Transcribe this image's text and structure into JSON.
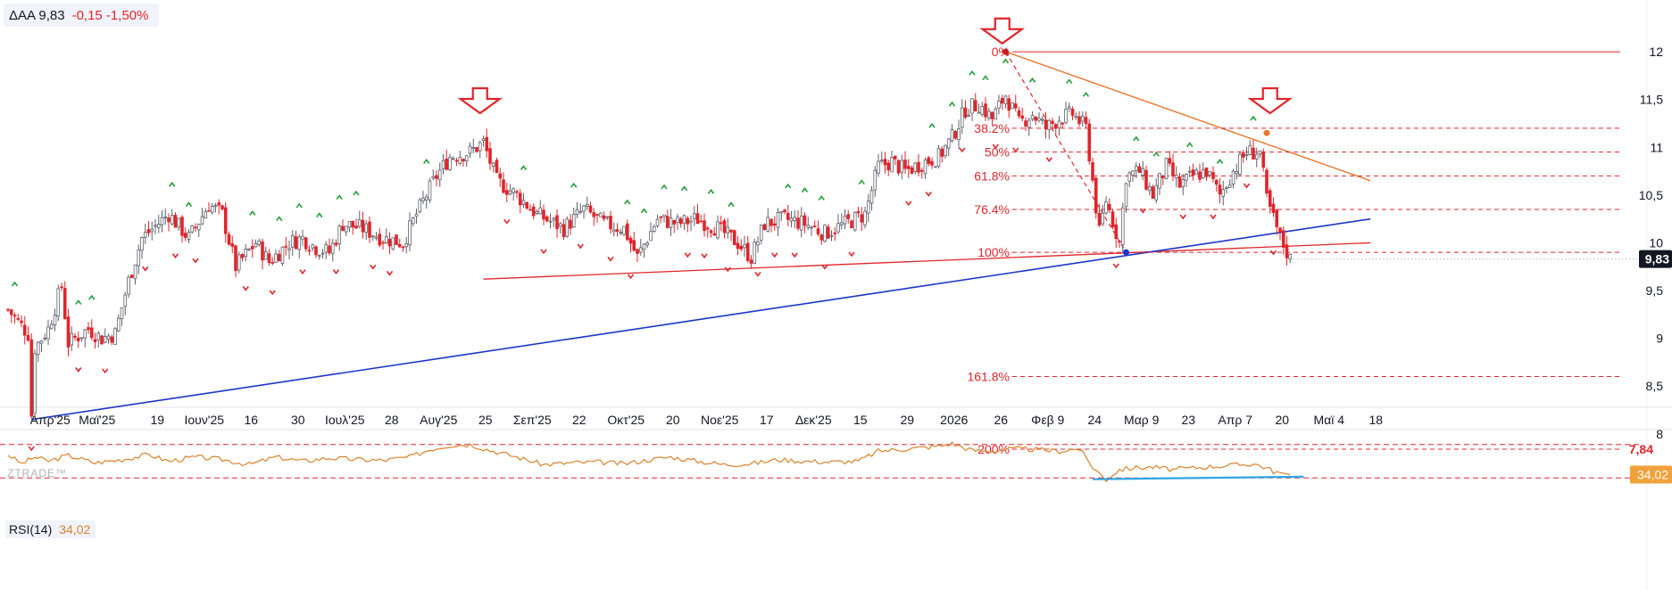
{
  "header": {
    "symbol": "ΔΑΑ 9,83",
    "change": "-0,15 -1,50%"
  },
  "rsi": {
    "name": "RSI(14)",
    "value": "34,02"
  },
  "brand": "ZTRADE™",
  "colors": {
    "up": "#ffffff",
    "down": "#e0252b",
    "fib": "#e0252b",
    "trend_blue": "#1b35c8",
    "trend_orange": "#e8772e",
    "rsi_line": "#d9822b",
    "rsi_trend": "#2fa6e6",
    "axis_text": "#131722"
  },
  "chart_data": [
    {
      "type": "candlestick",
      "title": "ΔΑΑ",
      "last_price": 9.83,
      "last_price_label": "9,83",
      "fib_low_label": "7,84",
      "ylim": [
        7.7,
        12.15
      ],
      "y_ticks": [
        {
          "value": 12,
          "label": "12"
        },
        {
          "value": 11.5,
          "label": "11,5"
        },
        {
          "value": 11,
          "label": "11"
        },
        {
          "value": 10.5,
          "label": "10,5"
        },
        {
          "value": 10,
          "label": "10"
        },
        {
          "value": 9.5,
          "label": "9,5"
        },
        {
          "value": 9,
          "label": "9"
        },
        {
          "value": 8.5,
          "label": "8,5"
        },
        {
          "value": 8,
          "label": "8"
        }
      ],
      "x_ticks": [
        {
          "day": 11,
          "label": "Απρ'25"
        },
        {
          "day": 25,
          "label": "Μαϊ'25"
        },
        {
          "day": 43,
          "label": "19"
        },
        {
          "day": 57,
          "label": "Ιουν'25"
        },
        {
          "day": 71,
          "label": "16"
        },
        {
          "day": 85,
          "label": "30"
        },
        {
          "day": 99,
          "label": "Ιουλ'25"
        },
        {
          "day": 113,
          "label": "28"
        },
        {
          "day": 127,
          "label": "Αυγ'25"
        },
        {
          "day": 141,
          "label": "25"
        },
        {
          "day": 155,
          "label": "Σεπ'25"
        },
        {
          "day": 169,
          "label": "22"
        },
        {
          "day": 183,
          "label": "Οκτ'25"
        },
        {
          "day": 197,
          "label": "20"
        },
        {
          "day": 211,
          "label": "Νοε'25"
        },
        {
          "day": 225,
          "label": "17"
        },
        {
          "day": 239,
          "label": "Δεκ'25"
        },
        {
          "day": 253,
          "label": "15"
        },
        {
          "day": 267,
          "label": "29"
        },
        {
          "day": 281,
          "label": "2026"
        },
        {
          "day": 295,
          "label": "26"
        },
        {
          "day": 309,
          "label": "Φεβ 9"
        },
        {
          "day": 323,
          "label": "24"
        },
        {
          "day": 337,
          "label": "Μαρ 9"
        },
        {
          "day": 351,
          "label": "23"
        },
        {
          "day": 365,
          "label": "Απρ 7"
        },
        {
          "day": 379,
          "label": "20"
        },
        {
          "day": 393,
          "label": "Μαϊ 4"
        },
        {
          "day": 407,
          "label": "18"
        }
      ],
      "price_path": [
        [
          0,
          9.3
        ],
        [
          6,
          9.05
        ],
        [
          7,
          8.2
        ],
        [
          8,
          8.9
        ],
        [
          12,
          9.1
        ],
        [
          16,
          9.55
        ],
        [
          18,
          8.95
        ],
        [
          24,
          9.1
        ],
        [
          28,
          9.0
        ],
        [
          32,
          9.05
        ],
        [
          36,
          9.6
        ],
        [
          40,
          10.05
        ],
        [
          48,
          10.3
        ],
        [
          54,
          10.05
        ],
        [
          60,
          10.4
        ],
        [
          64,
          10.3
        ],
        [
          68,
          9.75
        ],
        [
          74,
          10.0
        ],
        [
          78,
          9.8
        ],
        [
          84,
          10.0
        ],
        [
          88,
          10.05
        ],
        [
          92,
          9.95
        ],
        [
          96,
          9.9
        ],
        [
          100,
          10.2
        ],
        [
          106,
          10.15
        ],
        [
          112,
          10.05
        ],
        [
          118,
          10.0
        ],
        [
          122,
          10.3
        ],
        [
          128,
          10.7
        ],
        [
          132,
          10.9
        ],
        [
          138,
          10.95
        ],
        [
          142,
          11.05
        ],
        [
          146,
          10.65
        ],
        [
          152,
          10.5
        ],
        [
          158,
          10.3
        ],
        [
          166,
          10.15
        ],
        [
          172,
          10.35
        ],
        [
          178,
          10.2
        ],
        [
          184,
          10.15
        ],
        [
          188,
          9.85
        ],
        [
          194,
          10.25
        ],
        [
          200,
          10.2
        ],
        [
          206,
          10.25
        ],
        [
          212,
          10.15
        ],
        [
          218,
          10.0
        ],
        [
          222,
          9.85
        ],
        [
          226,
          10.2
        ],
        [
          232,
          10.25
        ],
        [
          238,
          10.2
        ],
        [
          244,
          10.1
        ],
        [
          250,
          10.2
        ],
        [
          256,
          10.3
        ],
        [
          260,
          10.8
        ],
        [
          264,
          10.85
        ],
        [
          268,
          10.75
        ],
        [
          274,
          10.85
        ],
        [
          278,
          10.9
        ],
        [
          282,
          11.1
        ],
        [
          286,
          11.4
        ],
        [
          290,
          11.45
        ],
        [
          294,
          11.3
        ],
        [
          298,
          11.55
        ],
        [
          302,
          11.25
        ],
        [
          306,
          11.35
        ],
        [
          310,
          11.2
        ],
        [
          314,
          11.3
        ],
        [
          318,
          11.35
        ],
        [
          322,
          11.2
        ],
        [
          326,
          10.1
        ],
        [
          328,
          10.45
        ],
        [
          332,
          10.0
        ],
        [
          334,
          10.7
        ],
        [
          338,
          10.75
        ],
        [
          342,
          10.5
        ],
        [
          346,
          10.8
        ],
        [
          350,
          10.6
        ],
        [
          354,
          10.7
        ],
        [
          358,
          10.75
        ],
        [
          362,
          10.5
        ],
        [
          366,
          10.75
        ],
        [
          370,
          10.95
        ],
        [
          374,
          10.95
        ],
        [
          376,
          10.45
        ],
        [
          380,
          10.05
        ],
        [
          383,
          9.83
        ]
      ],
      "swing_highs": [
        2,
        21,
        25,
        49,
        54,
        73,
        81,
        87,
        93,
        99,
        104,
        125,
        142,
        154,
        169,
        185,
        190,
        196,
        202,
        210,
        216,
        233,
        238,
        243,
        255,
        276,
        282,
        288,
        292,
        298,
        306,
        317,
        322,
        337,
        343,
        353,
        362,
        372
      ],
      "swing_lows": [
        7,
        21,
        29,
        41,
        50,
        56,
        71,
        79,
        88,
        98,
        109,
        114,
        149,
        160,
        171,
        180,
        186,
        203,
        208,
        215,
        224,
        229,
        235,
        244,
        252,
        269,
        275,
        285,
        295,
        301,
        311,
        331,
        339,
        351,
        360,
        370,
        378
      ],
      "annotations": {
        "arrows": [
          {
            "day": 141,
            "price": 11.45
          },
          {
            "day": 297,
            "price": 12.18
          },
          {
            "day": 377,
            "price": 11.45
          }
        ],
        "support_line": {
          "from": [
            142,
            9.62
          ],
          "to": [
            407,
            10.0
          ]
        },
        "blue_trend": {
          "from": [
            7,
            8.15
          ],
          "to": [
            407,
            10.25
          ]
        },
        "orange_trend": {
          "from": [
            298,
            12.0
          ],
          "to": [
            407,
            10.65
          ]
        },
        "fib_diagonal": {
          "from": [
            298,
            12.0
          ],
          "to": [
            334,
            9.9
          ]
        },
        "fib_levels": [
          {
            "price": 12.0,
            "label": "0%"
          },
          {
            "price": 11.2,
            "label": "38.2%"
          },
          {
            "price": 10.95,
            "label": "50%"
          },
          {
            "price": 10.7,
            "label": "61.8%"
          },
          {
            "price": 10.35,
            "label": "76.4%"
          },
          {
            "price": 9.9,
            "label": "100%"
          },
          {
            "price": 8.6,
            "label": "161.8%"
          },
          {
            "price": 7.84,
            "label": "200%"
          }
        ]
      }
    },
    {
      "type": "line",
      "title": "RSI(14)",
      "ylim": [
        25,
        75
      ],
      "levels": [
        70,
        30
      ],
      "last_value": 34.02,
      "path": [
        [
          0,
          58
        ],
        [
          4,
          47
        ],
        [
          8,
          55
        ],
        [
          12,
          50
        ],
        [
          18,
          57
        ],
        [
          26,
          48
        ],
        [
          34,
          52
        ],
        [
          42,
          58
        ],
        [
          48,
          50
        ],
        [
          56,
          55
        ],
        [
          64,
          52
        ],
        [
          72,
          46
        ],
        [
          80,
          55
        ],
        [
          88,
          50
        ],
        [
          96,
          54
        ],
        [
          104,
          52
        ],
        [
          112,
          51
        ],
        [
          120,
          55
        ],
        [
          126,
          64
        ],
        [
          132,
          69
        ],
        [
          138,
          70
        ],
        [
          144,
          63
        ],
        [
          152,
          55
        ],
        [
          160,
          46
        ],
        [
          168,
          48
        ],
        [
          176,
          49
        ],
        [
          184,
          47
        ],
        [
          192,
          52
        ],
        [
          198,
          55
        ],
        [
          206,
          50
        ],
        [
          214,
          46
        ],
        [
          222,
          47
        ],
        [
          230,
          52
        ],
        [
          238,
          50
        ],
        [
          246,
          49
        ],
        [
          254,
          50
        ],
        [
          260,
          62
        ],
        [
          266,
          64
        ],
        [
          272,
          66
        ],
        [
          278,
          68
        ],
        [
          282,
          71
        ],
        [
          288,
          63
        ],
        [
          294,
          62
        ],
        [
          300,
          65
        ],
        [
          306,
          64
        ],
        [
          314,
          62
        ],
        [
          320,
          65
        ],
        [
          324,
          43
        ],
        [
          328,
          28
        ],
        [
          332,
          40
        ],
        [
          336,
          42
        ],
        [
          342,
          43
        ],
        [
          348,
          40
        ],
        [
          354,
          42
        ],
        [
          360,
          44
        ],
        [
          366,
          45
        ],
        [
          372,
          47
        ],
        [
          376,
          42
        ],
        [
          378,
          38
        ],
        [
          383,
          34.02
        ]
      ],
      "trend": {
        "from": [
          324,
          28.5
        ],
        "to": [
          387,
          31.5
        ]
      }
    }
  ]
}
